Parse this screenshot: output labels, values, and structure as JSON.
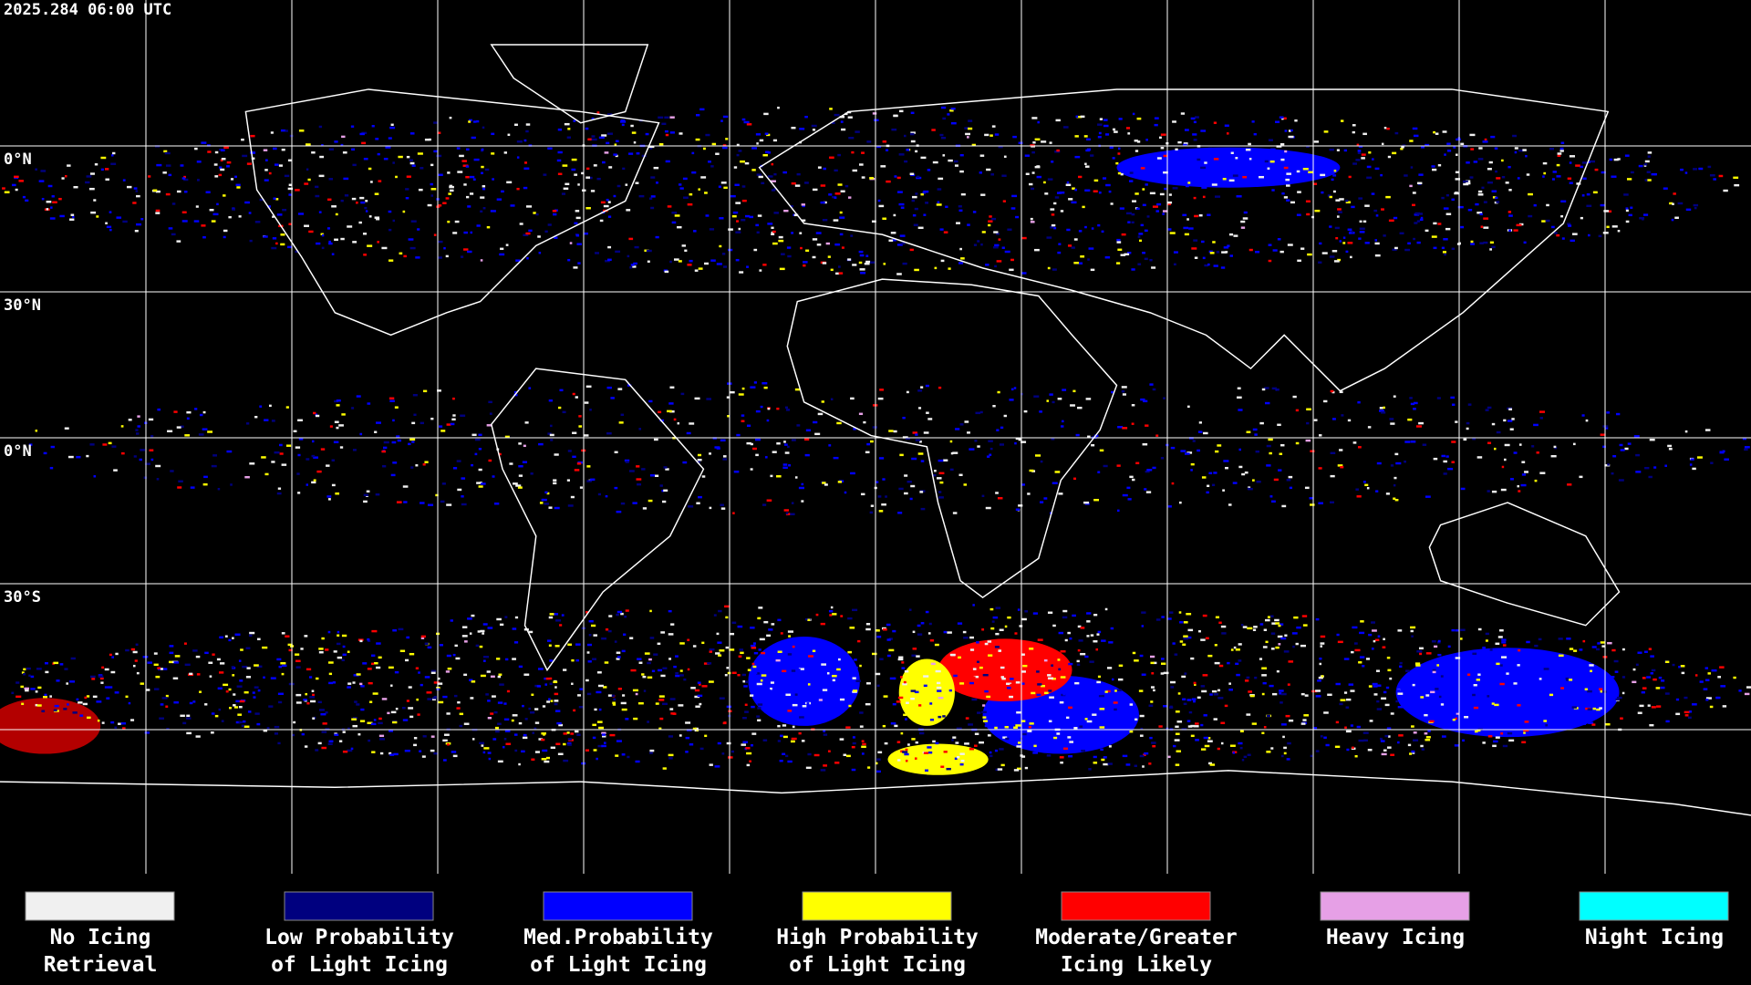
{
  "timestamp": "2025.284 06:00 UTC",
  "latitude_labels": [
    "0°N",
    "30°N",
    "0°N",
    "30°S"
  ],
  "legend": [
    {
      "label": [
        "No Icing",
        "Retrieval"
      ],
      "color": "#f0f0f0"
    },
    {
      "label": [
        "Low Probability",
        "of Light Icing"
      ],
      "color": "#00007f"
    },
    {
      "label": [
        "Med.Probability",
        "of Light Icing"
      ],
      "color": "#0000ff"
    },
    {
      "label": [
        "High Probability",
        "of Light Icing"
      ],
      "color": "#ffff00"
    },
    {
      "label": [
        "Moderate/Greater",
        "Icing Likely"
      ],
      "color": "#ff0000"
    },
    {
      "label": [
        "Heavy Icing"
      ],
      "color": "#e6a0e6"
    },
    {
      "label": [
        "Night Icing"
      ],
      "color": "#00ffff"
    }
  ]
}
